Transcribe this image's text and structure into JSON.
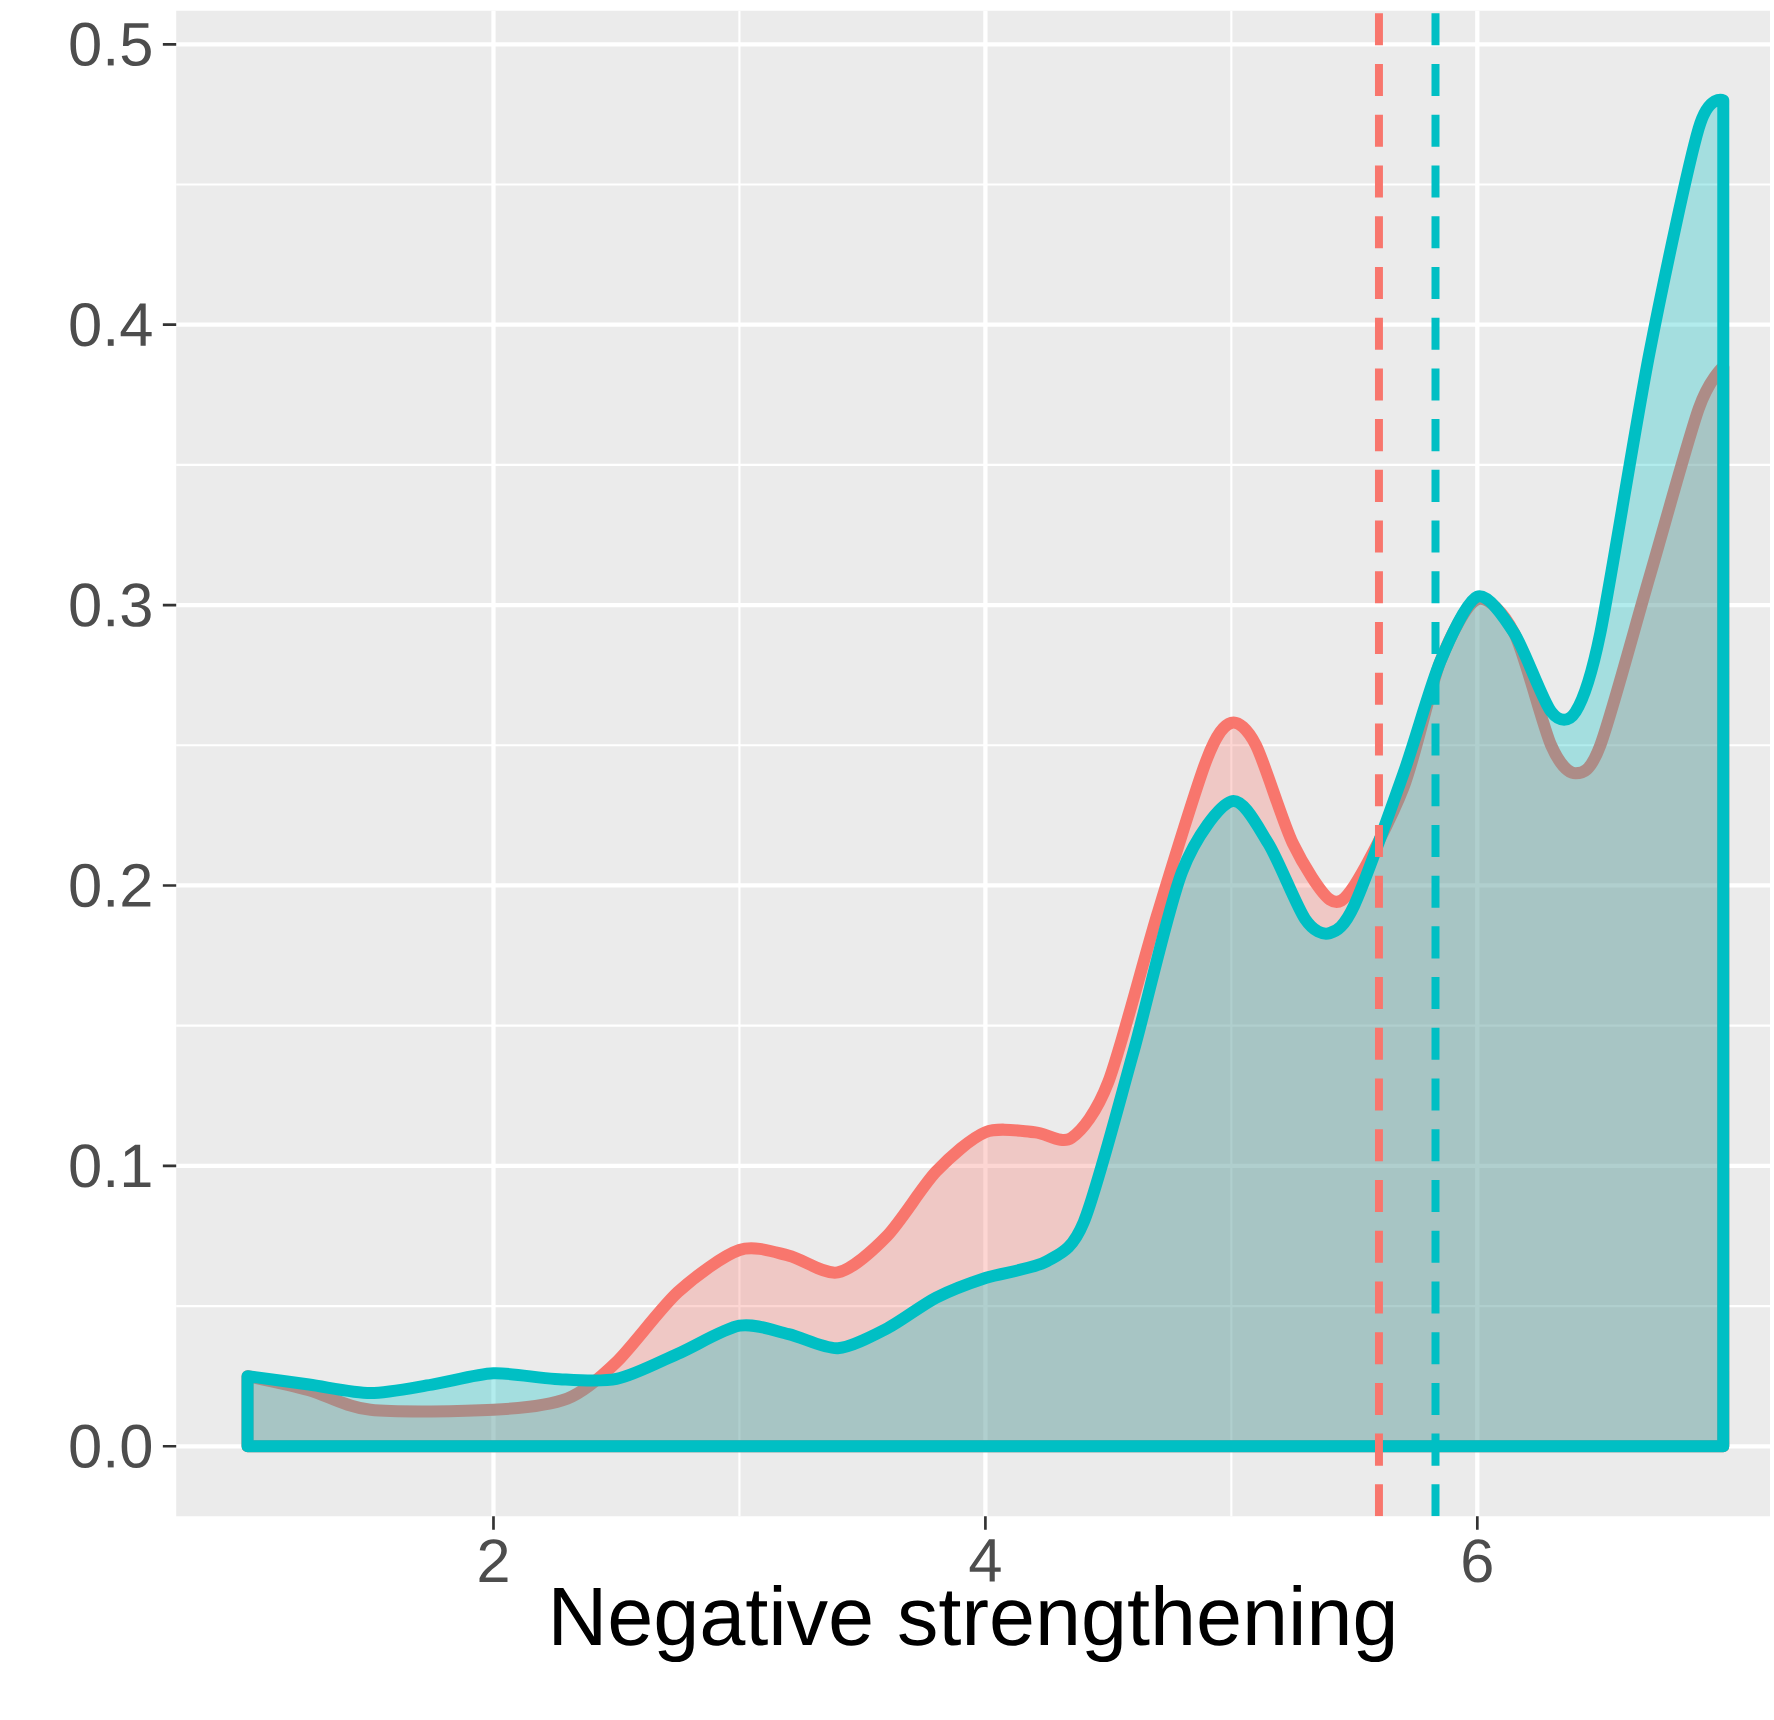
{
  "chart_data": {
    "type": "area",
    "xlabel": "Negative strengthening",
    "xlim": [
      0.71,
      7.19
    ],
    "ylim": [
      -0.025,
      0.512
    ],
    "xticks": [
      2,
      4,
      6
    ],
    "yticks": [
      {
        "value": 0,
        "label": "0.0"
      },
      0.1,
      0.2,
      0.3,
      0.4,
      0.5
    ],
    "grid": true,
    "series": [
      {
        "color": "#F8766D",
        "x": [
          1,
          1.25,
          1.5,
          2,
          2.3,
          2.5,
          2.75,
          3,
          3.2,
          3.4,
          3.6,
          3.8,
          4,
          4.2,
          4.35,
          4.5,
          4.7,
          4.9,
          5,
          5.1,
          5.25,
          5.4,
          5.5,
          5.7,
          5.85,
          6,
          6.15,
          6.3,
          6.4,
          6.5,
          6.7,
          6.9,
          7
        ],
        "values": [
          0.025,
          0.02,
          0.013,
          0.013,
          0.017,
          0.03,
          0.055,
          0.07,
          0.068,
          0.062,
          0.075,
          0.098,
          0.112,
          0.112,
          0.11,
          0.13,
          0.19,
          0.245,
          0.258,
          0.25,
          0.215,
          0.195,
          0.2,
          0.235,
          0.28,
          0.302,
          0.29,
          0.25,
          0.24,
          0.25,
          0.31,
          0.37,
          0.385
        ]
      },
      {
        "color": "#00BFC4",
        "x": [
          1,
          1.25,
          1.5,
          1.75,
          2,
          2.25,
          2.5,
          2.75,
          3,
          3.2,
          3.4,
          3.6,
          3.8,
          4,
          4.25,
          4.4,
          4.6,
          4.8,
          5,
          5.15,
          5.3,
          5.4,
          5.5,
          5.7,
          5.85,
          6,
          6.15,
          6.3,
          6.4,
          6.5,
          6.7,
          6.9,
          7
        ],
        "values": [
          0.025,
          0.022,
          0.019,
          0.022,
          0.026,
          0.024,
          0.024,
          0.033,
          0.043,
          0.04,
          0.035,
          0.042,
          0.053,
          0.06,
          0.066,
          0.08,
          0.14,
          0.205,
          0.23,
          0.215,
          0.188,
          0.183,
          0.193,
          0.24,
          0.28,
          0.303,
          0.29,
          0.262,
          0.262,
          0.29,
          0.39,
          0.47,
          0.48
        ]
      }
    ],
    "ref_lines": [
      {
        "axis": "x",
        "value": 5.6,
        "color": "#F8766D",
        "line_style": "dashed"
      },
      {
        "axis": "x",
        "value": 5.83,
        "color": "#00BFC4",
        "line_style": "dashed"
      }
    ]
  }
}
